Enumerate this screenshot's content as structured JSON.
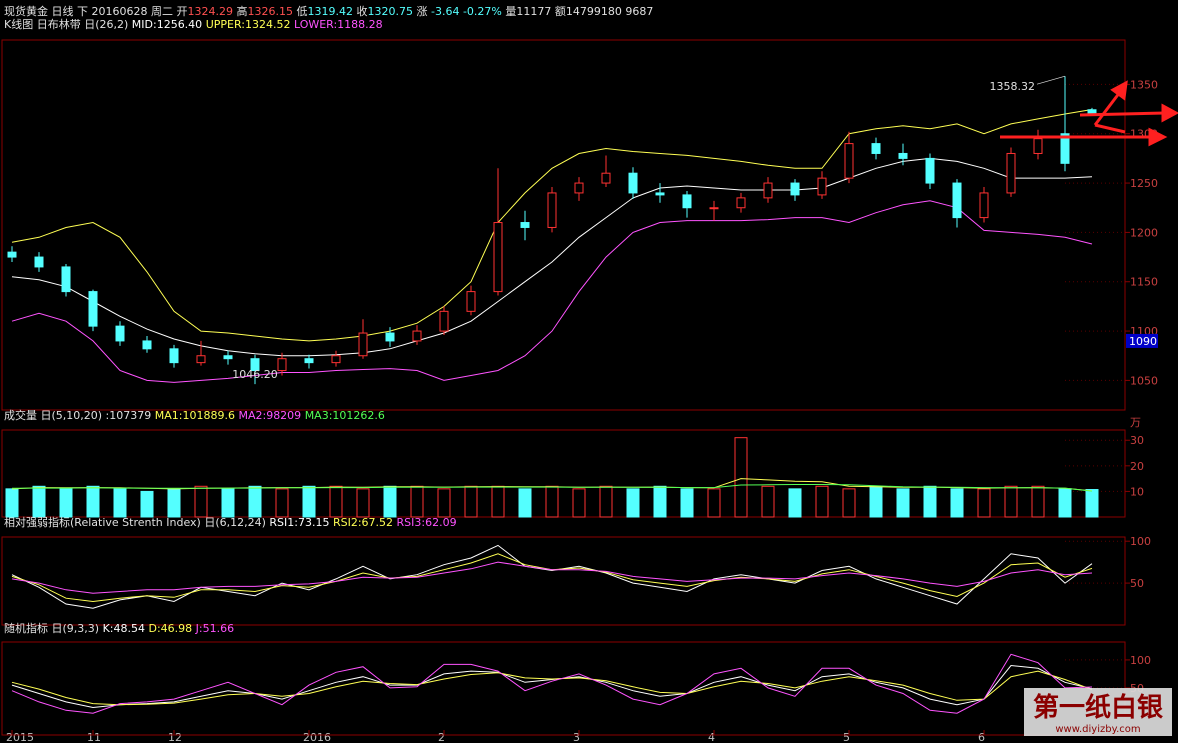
{
  "header": [
    {
      "text": "现货黄金 日线 下 20160628 周二 开",
      "color": "#e0e0e0"
    },
    {
      "text": "1324.29",
      "color": "#ff5050"
    },
    {
      "text": " 高",
      "color": "#e0e0e0"
    },
    {
      "text": "1326.15",
      "color": "#ff5050"
    },
    {
      "text": " 低",
      "color": "#e0e0e0"
    },
    {
      "text": "1319.42",
      "color": "#54ffff"
    },
    {
      "text": " 收",
      "color": "#e0e0e0"
    },
    {
      "text": "1320.75",
      "color": "#54ffff"
    },
    {
      "text": " 涨 ",
      "color": "#e0e0e0"
    },
    {
      "text": "-3.64 -0.27%",
      "color": "#54ffff"
    },
    {
      "text": " 量11177 额14799180 9687",
      "color": "#e0e0e0"
    }
  ],
  "watermark": {
    "title": "第一纸白银",
    "url": "www.diyizby.com"
  },
  "chart_data": [
    {
      "type": "candlestick",
      "legend": [
        {
          "text": "K线图 日布林带 日(26,2) ",
          "color": "#e0e0e0"
        },
        {
          "text": "MID:1256.40 ",
          "color": "#ffffff"
        },
        {
          "text": "UPPER:1324.52 ",
          "color": "#ffff54"
        },
        {
          "text": "LOWER:1188.28",
          "color": "#ff54ff"
        }
      ],
      "categories": [
        "2015",
        null,
        null,
        "11",
        null,
        null,
        "12",
        null,
        null,
        null,
        null,
        "2016",
        null,
        null,
        null,
        null,
        "2",
        null,
        null,
        null,
        null,
        "3",
        null,
        null,
        null,
        null,
        "4",
        null,
        null,
        null,
        null,
        "5",
        null,
        null,
        null,
        null,
        "6",
        null,
        null,
        null,
        null
      ],
      "ohlc": [
        [
          1180,
          1186,
          1170,
          1175
        ],
        [
          1175,
          1180,
          1160,
          1165
        ],
        [
          1165,
          1168,
          1135,
          1140
        ],
        [
          1140,
          1142,
          1100,
          1105
        ],
        [
          1105,
          1110,
          1085,
          1090
        ],
        [
          1090,
          1095,
          1078,
          1082
        ],
        [
          1082,
          1086,
          1063,
          1068
        ],
        [
          1068,
          1090,
          1065,
          1075
        ],
        [
          1075,
          1080,
          1066,
          1072
        ],
        [
          1072,
          1076,
          1046.2,
          1060
        ],
        [
          1060,
          1078,
          1055,
          1072
        ],
        [
          1072,
          1076,
          1062,
          1068
        ],
        [
          1068,
          1080,
          1064,
          1075
        ],
        [
          1075,
          1112,
          1072,
          1098
        ],
        [
          1098,
          1104,
          1084,
          1090
        ],
        [
          1090,
          1106,
          1086,
          1100
        ],
        [
          1100,
          1125,
          1096,
          1120
        ],
        [
          1120,
          1146,
          1116,
          1140
        ],
        [
          1140,
          1265,
          1136,
          1210
        ],
        [
          1210,
          1222,
          1192,
          1205
        ],
        [
          1205,
          1246,
          1200,
          1240
        ],
        [
          1240,
          1256,
          1232,
          1250
        ],
        [
          1250,
          1278,
          1246,
          1260
        ],
        [
          1260,
          1266,
          1234,
          1240
        ],
        [
          1240,
          1250,
          1230,
          1238
        ],
        [
          1238,
          1242,
          1215,
          1225
        ],
        [
          1225,
          1232,
          1212,
          1225
        ],
        [
          1225,
          1240,
          1220,
          1235
        ],
        [
          1235,
          1256,
          1230,
          1250
        ],
        [
          1250,
          1254,
          1232,
          1238
        ],
        [
          1238,
          1262,
          1234,
          1255
        ],
        [
          1255,
          1302,
          1250,
          1290
        ],
        [
          1290,
          1296,
          1274,
          1280
        ],
        [
          1280,
          1290,
          1268,
          1275
        ],
        [
          1275,
          1280,
          1244,
          1250
        ],
        [
          1250,
          1254,
          1205,
          1215
        ],
        [
          1215,
          1246,
          1210,
          1240
        ],
        [
          1240,
          1286,
          1236,
          1280
        ],
        [
          1280,
          1304,
          1274,
          1295
        ],
        [
          1300,
          1358.32,
          1262,
          1270
        ],
        [
          1324.29,
          1326.15,
          1319.42,
          1320.75
        ]
      ],
      "up_color": "#ff3232",
      "down_color": "#54ffff",
      "series": [
        {
          "color": "#ffff54",
          "values": [
            1190,
            1195,
            1205,
            1210,
            1195,
            1160,
            1120,
            1100,
            1098,
            1095,
            1092,
            1090,
            1092,
            1095,
            1100,
            1108,
            1125,
            1150,
            1210,
            1240,
            1265,
            1280,
            1285,
            1282,
            1280,
            1278,
            1275,
            1272,
            1268,
            1265,
            1265,
            1300,
            1305,
            1308,
            1305,
            1310,
            1300,
            1310,
            1315,
            1320,
            1324.52
          ]
        },
        {
          "color": "#ffffff",
          "values": [
            1155,
            1152,
            1145,
            1130,
            1115,
            1102,
            1092,
            1085,
            1080,
            1077,
            1075,
            1075,
            1076,
            1078,
            1082,
            1090,
            1098,
            1110,
            1130,
            1150,
            1170,
            1195,
            1215,
            1235,
            1245,
            1247,
            1245,
            1243,
            1243,
            1243,
            1245,
            1255,
            1265,
            1272,
            1275,
            1272,
            1265,
            1255,
            1255,
            1255,
            1256.4
          ]
        },
        {
          "color": "#ff54ff",
          "values": [
            1110,
            1118,
            1110,
            1090,
            1060,
            1050,
            1048,
            1050,
            1052,
            1055,
            1058,
            1058,
            1060,
            1061,
            1062,
            1060,
            1050,
            1055,
            1060,
            1075,
            1100,
            1140,
            1175,
            1200,
            1210,
            1212,
            1212,
            1212,
            1213,
            1215,
            1215,
            1210,
            1220,
            1228,
            1232,
            1225,
            1202,
            1200,
            1198,
            1195,
            1188.28
          ]
        }
      ],
      "annotations": [
        "1358.32",
        "1046.20"
      ],
      "cursor": 1090,
      "ylim": [
        1020,
        1395
      ],
      "yticks": [
        1050,
        1100,
        1150,
        1200,
        1250,
        1300,
        1350
      ]
    },
    {
      "type": "bar",
      "legend": [
        {
          "text": "成交量 日(5,10,20) :107379 ",
          "color": "#e0e0e0"
        },
        {
          "text": "MA1:101889.6 ",
          "color": "#ffff54"
        },
        {
          "text": "MA2:98209 ",
          "color": "#ff54ff"
        },
        {
          "text": "MA3:101262.6",
          "color": "#54ff54"
        }
      ],
      "unit": "万",
      "values": [
        11,
        12,
        11,
        12,
        11,
        10,
        11,
        12,
        11,
        12,
        11,
        12,
        12,
        11,
        12,
        12,
        11,
        12,
        12,
        11,
        12,
        11,
        12,
        11,
        12,
        11,
        11,
        31,
        12,
        11,
        12,
        11,
        12,
        11,
        12,
        11,
        11,
        12,
        12,
        11,
        10.74
      ],
      "series": [
        {
          "color": "#ffff54",
          "values": [
            11,
            11.5,
            11.4,
            11.5,
            11.4,
            11.2,
            11,
            11.2,
            11.3,
            11.4,
            11.5,
            11.5,
            11.7,
            11.6,
            11.8,
            11.8,
            11.7,
            11.8,
            11.9,
            11.8,
            11.8,
            11.6,
            11.7,
            11.6,
            11.7,
            11.5,
            11.4,
            15,
            14.5,
            14,
            13.8,
            12,
            11.8,
            11.6,
            11.7,
            11.5,
            11.3,
            11.4,
            11.5,
            11.2,
            10.19
          ]
        },
        {
          "color": "#54ff54",
          "values": [
            11.2,
            11.3,
            11.3,
            11.4,
            11.3,
            11.2,
            11.2,
            11.2,
            11.3,
            11.3,
            11.4,
            11.4,
            11.5,
            11.5,
            11.6,
            11.6,
            11.6,
            11.7,
            11.7,
            11.7,
            11.7,
            11.6,
            11.6,
            11.6,
            11.6,
            11.5,
            11.5,
            12.5,
            12.6,
            12.7,
            12.7,
            12.6,
            12.2,
            11.8,
            11.7,
            11.6,
            11.5,
            11.4,
            11.4,
            11.3,
            10.13
          ]
        }
      ],
      "up_color": "#ff3232",
      "down_color": "#54ffff",
      "ylim": [
        0,
        34
      ],
      "yticks": [
        10,
        20,
        30
      ]
    },
    {
      "type": "line",
      "legend": [
        {
          "text": "相对强弱指标(Relative Strenth Index) 日(6,12,24) ",
          "color": "#e0e0e0"
        },
        {
          "text": "RSI1:73.15 ",
          "color": "#ffffff"
        },
        {
          "text": "RSI2:67.52 ",
          "color": "#ffff54"
        },
        {
          "text": "RSI3:62.09",
          "color": "#ff54ff"
        }
      ],
      "series": [
        {
          "color": "#ffffff",
          "values": [
            60,
            45,
            25,
            20,
            30,
            35,
            28,
            45,
            40,
            35,
            50,
            42,
            55,
            70,
            55,
            60,
            72,
            80,
            95,
            70,
            65,
            70,
            62,
            50,
            45,
            40,
            55,
            60,
            55,
            50,
            65,
            70,
            55,
            45,
            35,
            25,
            55,
            85,
            80,
            50,
            73.15
          ]
        },
        {
          "color": "#ffff54",
          "values": [
            58,
            48,
            32,
            28,
            32,
            35,
            33,
            42,
            42,
            40,
            47,
            45,
            52,
            62,
            56,
            58,
            66,
            74,
            85,
            72,
            66,
            68,
            63,
            54,
            50,
            46,
            53,
            57,
            55,
            52,
            61,
            66,
            58,
            50,
            41,
            34,
            50,
            72,
            74,
            57,
            67.52
          ]
        },
        {
          "color": "#ff54ff",
          "values": [
            55,
            50,
            42,
            38,
            40,
            42,
            42,
            45,
            46,
            46,
            48,
            49,
            52,
            57,
            56,
            57,
            62,
            67,
            75,
            70,
            66,
            66,
            64,
            58,
            55,
            52,
            54,
            56,
            56,
            55,
            59,
            62,
            59,
            55,
            50,
            46,
            52,
            62,
            66,
            60,
            62.09
          ]
        }
      ],
      "ylim": [
        0,
        105
      ],
      "yticks": [
        50,
        100
      ]
    },
    {
      "type": "line",
      "legend": [
        {
          "text": "随机指标 日(9,3,3) ",
          "color": "#e0e0e0"
        },
        {
          "text": "K:48.54 ",
          "color": "#ffffff"
        },
        {
          "text": "D:46.98 ",
          "color": "#ffff54"
        },
        {
          "text": "J:51.66",
          "color": "#ff54ff"
        }
      ],
      "series": [
        {
          "color": "#ffffff",
          "values": [
            55,
            40,
            25,
            15,
            20,
            22,
            25,
            35,
            45,
            40,
            30,
            45,
            60,
            70,
            55,
            55,
            75,
            80,
            78,
            60,
            65,
            70,
            60,
            45,
            35,
            40,
            60,
            70,
            55,
            45,
            70,
            75,
            60,
            50,
            30,
            20,
            30,
            90,
            85,
            60,
            48.54
          ]
        },
        {
          "color": "#ffff54",
          "values": [
            60,
            48,
            33,
            22,
            20,
            21,
            23,
            30,
            38,
            40,
            35,
            40,
            52,
            62,
            58,
            56,
            66,
            74,
            77,
            68,
            66,
            68,
            63,
            52,
            42,
            40,
            52,
            62,
            58,
            50,
            62,
            70,
            63,
            55,
            40,
            28,
            30,
            70,
            80,
            65,
            46.98
          ]
        },
        {
          "color": "#ff54ff",
          "values": [
            45,
            25,
            10,
            5,
            22,
            25,
            30,
            45,
            60,
            40,
            20,
            55,
            78,
            88,
            50,
            52,
            92,
            92,
            80,
            45,
            62,
            75,
            55,
            30,
            20,
            40,
            75,
            85,
            50,
            35,
            85,
            85,
            55,
            40,
            10,
            5,
            30,
            110,
            95,
            50,
            51.66
          ]
        }
      ],
      "ylim": [
        -34,
        132
      ],
      "yticks": [
        50,
        100
      ]
    }
  ]
}
